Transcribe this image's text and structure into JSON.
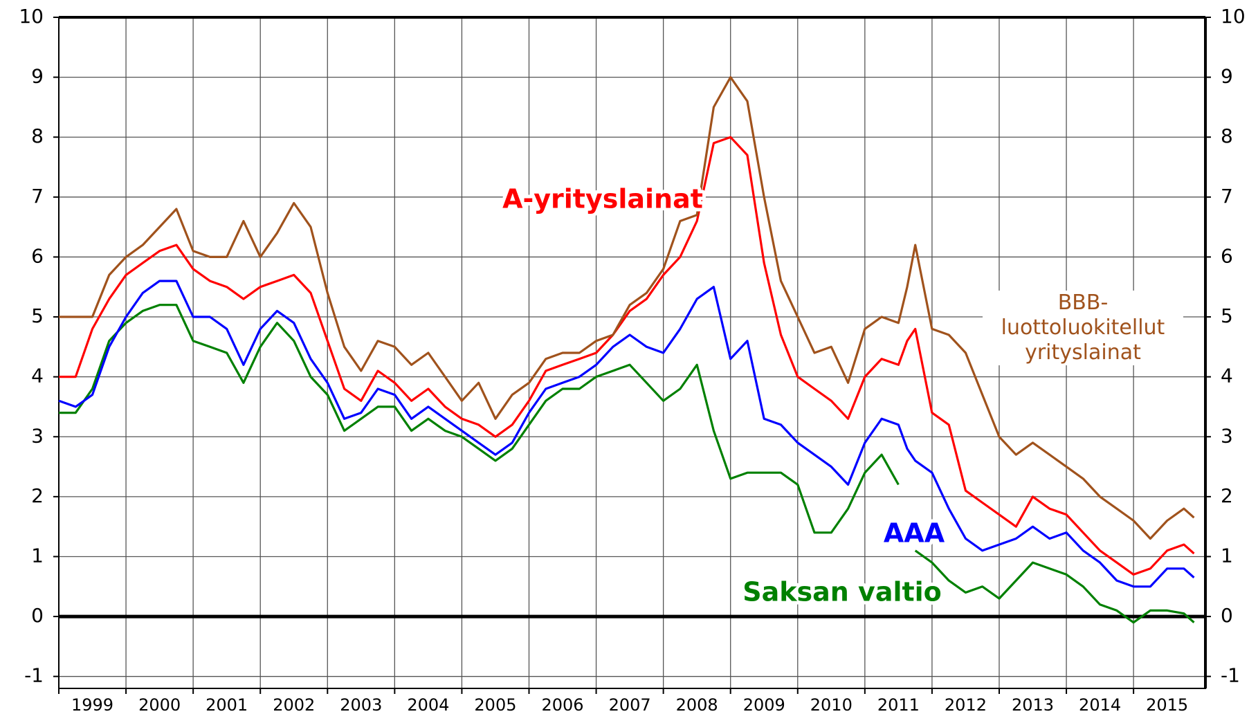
{
  "chart_data": {
    "type": "line",
    "x": [
      1999.0,
      1999.25,
      1999.5,
      1999.75,
      2000.0,
      2000.25,
      2000.5,
      2000.75,
      2001.0,
      2001.25,
      2001.5,
      2001.75,
      2002.0,
      2002.25,
      2002.5,
      2002.75,
      2003.0,
      2003.25,
      2003.5,
      2003.75,
      2004.0,
      2004.25,
      2004.5,
      2004.75,
      2005.0,
      2005.25,
      2005.5,
      2005.75,
      2006.0,
      2006.25,
      2006.5,
      2006.75,
      2007.0,
      2007.25,
      2007.5,
      2007.75,
      2008.0,
      2008.25,
      2008.5,
      2008.75,
      2009.0,
      2009.25,
      2009.5,
      2009.75,
      2010.0,
      2010.25,
      2010.5,
      2010.75,
      2011.0,
      2011.25,
      2011.5,
      2011.63,
      2011.75,
      2012.0,
      2012.25,
      2012.5,
      2012.75,
      2013.0,
      2013.25,
      2013.5,
      2013.75,
      2014.0,
      2014.25,
      2014.5,
      2014.75,
      2015.0,
      2015.25,
      2015.5,
      2015.75,
      2015.9
    ],
    "series": [
      {
        "name": "BBB-luottoluokitellut yrityslainat",
        "color": "#a0521c",
        "values": [
          5.0,
          5.0,
          5.0,
          5.7,
          6.0,
          6.2,
          6.5,
          6.8,
          6.1,
          6.0,
          6.0,
          6.6,
          6.0,
          6.4,
          6.9,
          6.5,
          5.4,
          4.5,
          4.1,
          4.6,
          4.5,
          4.2,
          4.4,
          4.0,
          3.6,
          3.9,
          3.3,
          3.7,
          3.9,
          4.3,
          4.4,
          4.4,
          4.6,
          4.7,
          5.2,
          5.4,
          5.8,
          6.6,
          6.7,
          8.5,
          9.0,
          8.6,
          7.0,
          5.6,
          5.0,
          4.4,
          4.5,
          3.9,
          4.8,
          5.0,
          4.9,
          5.5,
          6.2,
          4.8,
          4.7,
          4.4,
          3.7,
          3.0,
          2.7,
          2.9,
          2.7,
          2.5,
          2.3,
          2.0,
          1.8,
          1.6,
          1.3,
          1.6,
          1.8,
          1.65
        ]
      },
      {
        "name": "A-yrityslainat",
        "color": "#ff0000",
        "values": [
          4.0,
          4.0,
          4.8,
          5.3,
          5.7,
          5.9,
          6.1,
          6.2,
          5.8,
          5.6,
          5.5,
          5.3,
          5.5,
          5.6,
          5.7,
          5.4,
          4.6,
          3.8,
          3.6,
          4.1,
          3.9,
          3.6,
          3.8,
          3.5,
          3.3,
          3.2,
          3.0,
          3.2,
          3.6,
          4.1,
          4.2,
          4.3,
          4.4,
          4.7,
          5.1,
          5.3,
          5.7,
          6.0,
          6.6,
          7.9,
          8.0,
          7.7,
          5.9,
          4.7,
          4.0,
          3.8,
          3.6,
          3.3,
          4.0,
          4.3,
          4.2,
          4.6,
          4.8,
          3.4,
          3.2,
          2.1,
          1.9,
          1.7,
          1.5,
          2.0,
          1.8,
          1.7,
          1.4,
          1.1,
          0.9,
          0.7,
          0.8,
          1.1,
          1.2,
          1.05
        ]
      },
      {
        "name": "AAA",
        "color": "#0000ff",
        "values": [
          3.6,
          3.5,
          3.7,
          4.5,
          5.0,
          5.4,
          5.6,
          5.6,
          5.0,
          5.0,
          4.8,
          4.2,
          4.8,
          5.1,
          4.9,
          4.3,
          3.9,
          3.3,
          3.4,
          3.8,
          3.7,
          3.3,
          3.5,
          3.3,
          3.1,
          2.9,
          2.7,
          2.9,
          3.4,
          3.8,
          3.9,
          4.0,
          4.2,
          4.5,
          4.7,
          4.5,
          4.4,
          4.8,
          5.3,
          5.5,
          4.3,
          4.6,
          3.3,
          3.2,
          2.9,
          2.7,
          2.5,
          2.2,
          2.9,
          3.3,
          3.2,
          2.8,
          2.6,
          2.4,
          1.8,
          1.3,
          1.1,
          1.2,
          1.3,
          1.5,
          1.3,
          1.4,
          1.1,
          0.9,
          0.6,
          0.5,
          0.5,
          0.8,
          0.8,
          0.65
        ]
      },
      {
        "name": "Saksan valtio",
        "color": "#008000",
        "values": [
          3.4,
          3.4,
          3.8,
          4.6,
          4.9,
          5.1,
          5.2,
          5.2,
          4.6,
          4.5,
          4.4,
          3.9,
          4.5,
          4.9,
          4.6,
          4.0,
          3.7,
          3.1,
          3.3,
          3.5,
          3.5,
          3.1,
          3.3,
          3.1,
          3.0,
          2.8,
          2.6,
          2.8,
          3.2,
          3.6,
          3.8,
          3.8,
          4.0,
          4.1,
          4.2,
          3.9,
          3.6,
          3.8,
          4.2,
          3.1,
          2.3,
          2.4,
          2.4,
          2.4,
          2.2,
          1.4,
          1.4,
          1.8,
          2.4,
          2.7,
          2.2,
          null,
          1.1,
          0.9,
          0.6,
          0.4,
          0.5,
          0.3,
          0.6,
          0.9,
          0.8,
          0.7,
          0.5,
          0.2,
          0.1,
          -0.1,
          0.1,
          0.1,
          0.05,
          -0.1
        ]
      }
    ],
    "xlim": [
      1999,
      2016.07
    ],
    "xticks": [
      1999,
      2000,
      2001,
      2002,
      2003,
      2004,
      2005,
      2006,
      2007,
      2008,
      2009,
      2010,
      2011,
      2012,
      2013,
      2014,
      2015
    ],
    "ylim": [
      -1.2,
      10
    ],
    "yticks": [
      -1,
      0,
      1,
      2,
      3,
      4,
      5,
      6,
      7,
      8,
      9,
      10
    ],
    "grid": true
  }
}
